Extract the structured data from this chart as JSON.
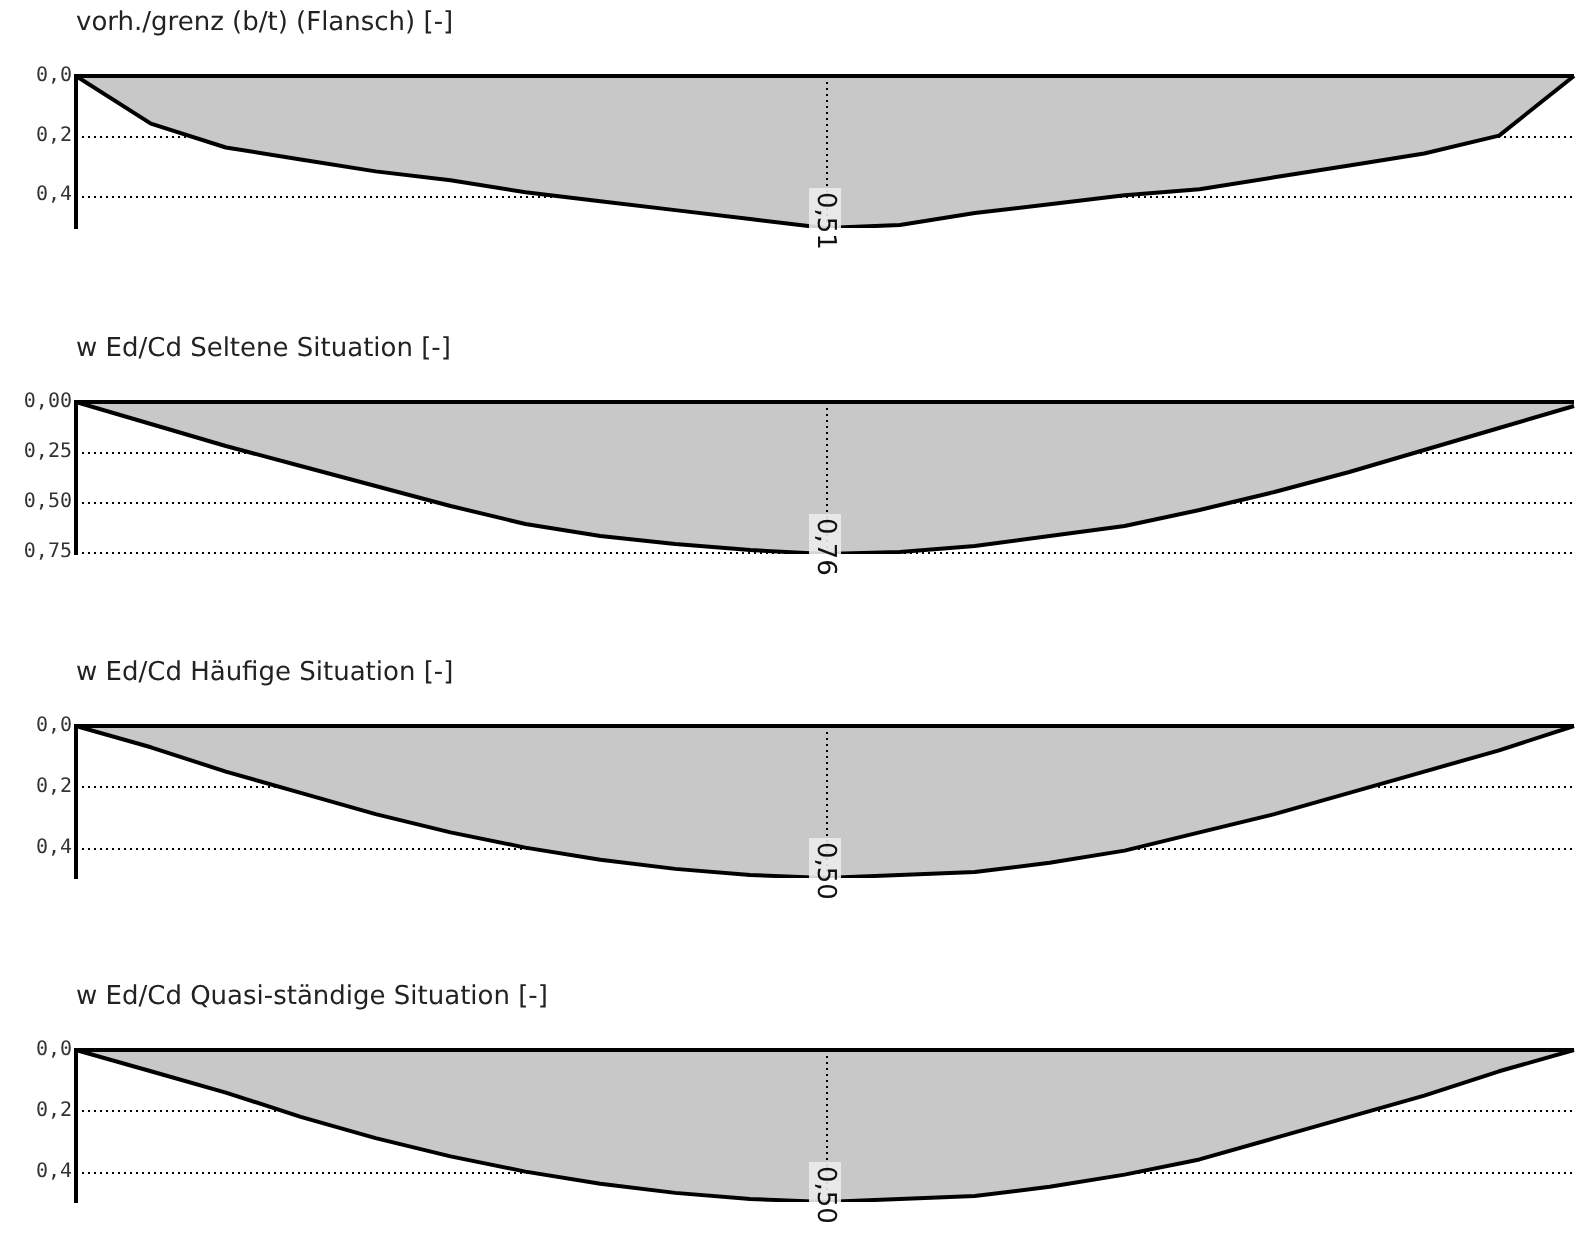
{
  "chart_data": [
    {
      "type": "area",
      "title": "vorh./grenz (b/t) (Flansch)  [-]",
      "categories": [
        null,
        null,
        null,
        null,
        null,
        null,
        null,
        null,
        null,
        null,
        null,
        null,
        null,
        null,
        null,
        null,
        null,
        null,
        null,
        null,
        null
      ],
      "values": [
        0,
        0.16,
        0.24,
        0.28,
        0.32,
        0.35,
        0.39,
        0.42,
        0.45,
        0.48,
        0.51,
        0.5,
        0.46,
        0.43,
        0.4,
        0.38,
        0.34,
        0.3,
        0.26,
        0.2,
        0
      ],
      "value_labels": [
        null,
        null,
        null,
        null,
        null,
        null,
        null,
        null,
        null,
        null,
        "0,51",
        null,
        null,
        null,
        null,
        null,
        null,
        null,
        null,
        null,
        null
      ],
      "color": "#c8c8c8",
      "ylim": [
        0.51,
        0
      ],
      "yticks": [
        {
          "value": 0,
          "label": "0,0"
        },
        {
          "value": 0.2,
          "label": "0,2"
        },
        {
          "value": 0.4,
          "label": "0,4"
        }
      ],
      "grid": "y"
    },
    {
      "type": "area",
      "title": "w Ed/Cd Seltene Situation [-]",
      "categories": [
        null,
        null,
        null,
        null,
        null,
        null,
        null,
        null,
        null,
        null,
        null,
        null,
        null,
        null,
        null,
        null,
        null,
        null,
        null,
        null,
        null
      ],
      "values": [
        0,
        0.11,
        0.22,
        0.32,
        0.42,
        0.52,
        0.61,
        0.67,
        0.71,
        0.74,
        0.76,
        0.75,
        0.72,
        0.67,
        0.62,
        0.54,
        0.45,
        0.35,
        0.24,
        0.13,
        0.02
      ],
      "value_labels": [
        null,
        null,
        null,
        null,
        null,
        null,
        null,
        null,
        null,
        null,
        "0,76",
        null,
        null,
        null,
        null,
        null,
        null,
        null,
        null,
        null,
        null
      ],
      "color": "#c8c8c8",
      "ylim": [
        0.76,
        0
      ],
      "yticks": [
        {
          "value": 0,
          "label": "0,00"
        },
        {
          "value": 0.25,
          "label": "0,25"
        },
        {
          "value": 0.5,
          "label": "0,50"
        },
        {
          "value": 0.75,
          "label": "0,75"
        }
      ],
      "grid": "y"
    },
    {
      "type": "area",
      "title": "w Ed/Cd Häufige Situation [-]",
      "categories": [
        null,
        null,
        null,
        null,
        null,
        null,
        null,
        null,
        null,
        null,
        null,
        null,
        null,
        null,
        null,
        null,
        null,
        null,
        null,
        null,
        null
      ],
      "values": [
        0,
        0.07,
        0.15,
        0.22,
        0.29,
        0.35,
        0.4,
        0.44,
        0.47,
        0.49,
        0.5,
        0.49,
        0.48,
        0.45,
        0.41,
        0.35,
        0.29,
        0.22,
        0.15,
        0.08,
        0
      ],
      "value_labels": [
        null,
        null,
        null,
        null,
        null,
        null,
        null,
        null,
        null,
        null,
        "0,50",
        null,
        null,
        null,
        null,
        null,
        null,
        null,
        null,
        null,
        null
      ],
      "color": "#c8c8c8",
      "ylim": [
        0.5,
        0
      ],
      "yticks": [
        {
          "value": 0,
          "label": "0,0"
        },
        {
          "value": 0.2,
          "label": "0,2"
        },
        {
          "value": 0.4,
          "label": "0,4"
        }
      ],
      "grid": "y"
    },
    {
      "type": "area",
      "title": "w Ed/Cd Quasi-ständige Situation [-]",
      "categories": [
        null,
        null,
        null,
        null,
        null,
        null,
        null,
        null,
        null,
        null,
        null,
        null,
        null,
        null,
        null,
        null,
        null,
        null,
        null,
        null,
        null
      ],
      "values": [
        0,
        0.07,
        0.14,
        0.22,
        0.29,
        0.35,
        0.4,
        0.44,
        0.47,
        0.49,
        0.5,
        0.49,
        0.48,
        0.45,
        0.41,
        0.36,
        0.29,
        0.22,
        0.15,
        0.07,
        0
      ],
      "value_labels": [
        null,
        null,
        null,
        null,
        null,
        null,
        null,
        null,
        null,
        null,
        "0,50",
        null,
        null,
        null,
        null,
        null,
        null,
        null,
        null,
        null,
        null
      ],
      "color": "#c8c8c8",
      "ylim": [
        0.5,
        0
      ],
      "yticks": [
        {
          "value": 0,
          "label": "0,0"
        },
        {
          "value": 0.2,
          "label": "0,2"
        },
        {
          "value": 0.4,
          "label": "0,4"
        }
      ],
      "grid": "y"
    }
  ]
}
